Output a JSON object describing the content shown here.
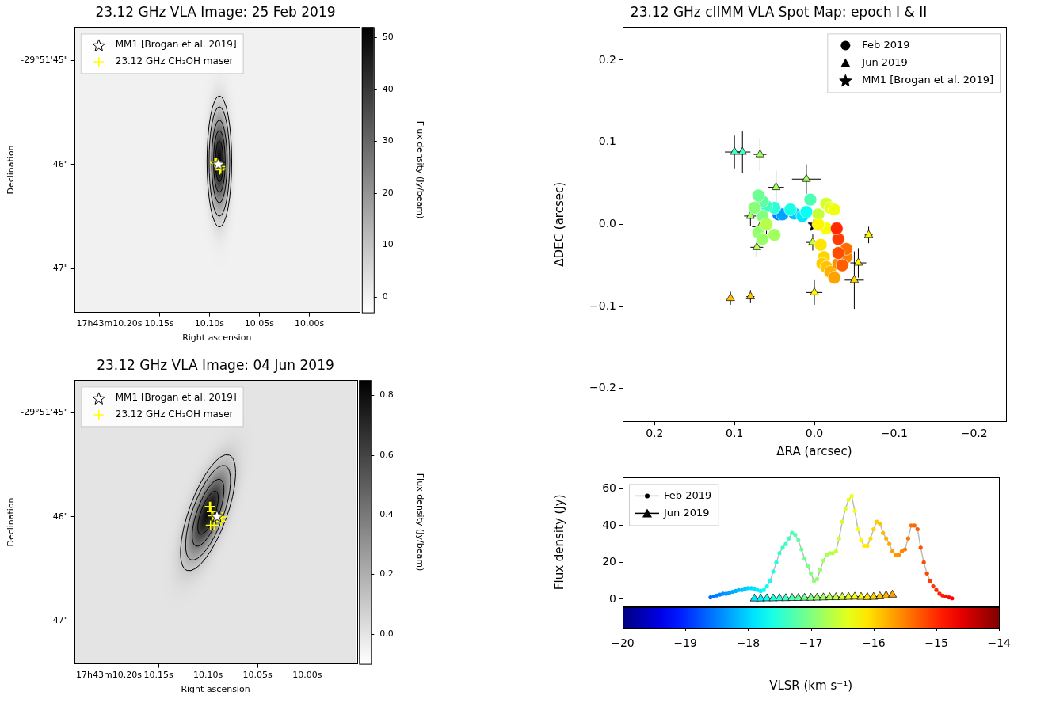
{
  "chart_data": [
    {
      "type": "image",
      "title": "23.12 GHz VLA Image: 25 Feb 2019",
      "x_label": "Right ascension",
      "y_label": "Declination",
      "xlim": [
        10.235,
        9.95
      ],
      "xticks": [
        {
          "value": 10.2,
          "label": "17h43m10.20s"
        },
        {
          "value": 10.15,
          "label": "10.15s"
        },
        {
          "value": 10.1,
          "label": "10.10s"
        },
        {
          "value": 10.05,
          "label": "10.05s"
        },
        {
          "value": 10.0,
          "label": "10.00s"
        }
      ],
      "ylim": [
        47.42,
        44.68
      ],
      "yticks": [
        {
          "value": 45,
          "label": "-29°51'45\""
        },
        {
          "value": 46,
          "label": "46\""
        },
        {
          "value": 47,
          "label": "47\""
        }
      ],
      "grid": false,
      "source": {
        "ra": 10.09,
        "dec": 45.97,
        "peak": 50,
        "fwhm_major": 0.69,
        "fwhm_minor": 0.13,
        "pa": 0
      },
      "contour_levels": [
        5,
        10,
        20,
        30,
        40
      ],
      "colorbar": {
        "range": [
          -3,
          52
        ],
        "ticks": [
          0,
          10,
          20,
          30,
          40,
          50
        ],
        "label": "Flux density (Jy/beam)"
      },
      "legend": "upper left",
      "series": [
        {
          "name": "MM1 [Brogan et al. 2019]",
          "marker": "star",
          "color": "#ffffff",
          "x": [
            10.091
          ],
          "values": [
            45.99
          ]
        },
        {
          "name": "23.12 GHz CH₃OH maser",
          "marker": "cross",
          "color": "#ffff00",
          "x": [
            10.0945,
            10.0935,
            10.0925,
            10.0905,
            10.089,
            10.0885,
            10.0895,
            10.0935
          ],
          "values": [
            45.98,
            45.985,
            45.98,
            45.99,
            46.02,
            46.04,
            46.05,
            45.99
          ]
        }
      ]
    },
    {
      "type": "image",
      "title": "23.12 GHz VLA Image: 04 Jun 2019",
      "x_label": "Right ascension",
      "y_label": "Declination",
      "xlim": [
        10.235,
        9.95
      ],
      "xticks": [
        {
          "value": 10.2,
          "label": "17h43m10.20s"
        },
        {
          "value": 10.15,
          "label": "10.15s"
        },
        {
          "value": 10.1,
          "label": "10.10s"
        },
        {
          "value": 10.05,
          "label": "10.05s"
        },
        {
          "value": 10.0,
          "label": "10.00s"
        }
      ],
      "ylim": [
        47.41,
        44.69
      ],
      "yticks": [
        {
          "value": 45,
          "label": "-29°51'45\""
        },
        {
          "value": 46,
          "label": "46\""
        },
        {
          "value": 47,
          "label": "47\""
        }
      ],
      "grid": false,
      "source": {
        "ra": 10.1,
        "dec": 45.96,
        "peak": 0.8,
        "fwhm_major": 0.68,
        "fwhm_minor": 0.21,
        "pa": -20
      },
      "contour_levels": [
        0.1,
        0.2,
        0.4,
        0.6
      ],
      "colorbar": {
        "range": [
          -0.1,
          0.85
        ],
        "ticks": [
          {
            "value": 0,
            "label": "0.0"
          },
          0.2,
          0.4,
          0.6,
          0.8
        ],
        "label": "Flux density (Jy/beam)"
      },
      "legend": "upper left",
      "series": [
        {
          "name": "MM1 [Brogan et al. 2019]",
          "marker": "star",
          "color": "#ffffff",
          "x": [
            10.091
          ],
          "values": [
            45.99
          ]
        },
        {
          "name": "23.12 GHz CH₃OH maser",
          "marker": "cross",
          "color": "#ffff00",
          "x": [
            10.0985,
            10.0975,
            10.0965,
            10.0975,
            10.094,
            10.091,
            10.087,
            10.086,
            10.095
          ],
          "values": [
            45.9,
            45.9,
            45.95,
            46.08,
            46.08,
            46.01,
            46.04,
            46.0,
            45.99
          ]
        }
      ]
    },
    {
      "type": "scatter",
      "title": "23.12 GHz cIIMM VLA Spot Map: epoch I & II",
      "x_label": "ΔRA (arcsec)",
      "y_label": "ΔDEC (arcsec)",
      "xlim": [
        0.24,
        -0.24
      ],
      "xticks": [
        0.2,
        0.1,
        {
          "value": 0,
          "label": "0.0"
        },
        {
          "value": -0.1,
          "label": "−0.1"
        },
        {
          "value": -0.2,
          "label": "−0.2"
        }
      ],
      "ylim": [
        -0.24,
        0.24
      ],
      "yticks": [
        {
          "value": -0.2,
          "label": "−0.2"
        },
        {
          "value": -0.1,
          "label": "−0.1"
        },
        {
          "value": 0,
          "label": "0.0"
        },
        0.1,
        0.2
      ],
      "grid": false,
      "legend": "upper right",
      "colorbar": {
        "range": [
          -20,
          -14
        ]
      },
      "series": [
        {
          "name": "Feb 2019",
          "marker": "circle",
          "x": [
            0.045,
            0.04,
            0.025,
            0.015,
            0.01,
            0.03,
            0.05,
            0.06,
            0.005,
            0.065,
            0.07,
            0.065,
            0.075,
            0.07,
            0.065,
            0.05,
            0.06,
            -0.005,
            -0.015,
            -0.02,
            -0.025,
            -0.015,
            -0.005,
            -0.008,
            -0.012,
            -0.01,
            -0.015,
            -0.02,
            -0.025,
            -0.03,
            -0.04,
            -0.04,
            -0.035,
            -0.03,
            -0.03,
            -0.028
          ],
          "values": [
            0.012,
            0.012,
            0.013,
            0.01,
            0.015,
            0.018,
            0.02,
            0.022,
            0.03,
            0.028,
            0.035,
            0.01,
            0.02,
            -0.01,
            -0.018,
            -0.013,
            0.0,
            0.012,
            0.025,
            0.02,
            0.018,
            -0.005,
            0.0,
            -0.025,
            -0.04,
            -0.048,
            -0.052,
            -0.058,
            -0.065,
            -0.048,
            -0.04,
            -0.03,
            -0.05,
            -0.035,
            -0.018,
            -0.005
          ],
          "v": [
            -18.5,
            -18.3,
            -18.1,
            -17.9,
            -17.7,
            -17.6,
            -17.5,
            -17.4,
            -17.3,
            -17.2,
            -17.1,
            -17.0,
            -16.95,
            -16.9,
            -16.85,
            -16.8,
            -16.7,
            -16.6,
            -16.5,
            -16.4,
            -16.35,
            -16.3,
            -16.2,
            -16.1,
            -16.0,
            -15.95,
            -15.9,
            -15.8,
            -15.7,
            -15.6,
            -15.5,
            -15.4,
            -15.3,
            -15.2,
            -15.1,
            -15.0
          ]
        },
        {
          "name": "Jun 2019",
          "marker": "triangle",
          "x": [
            0.1,
            0.09,
            0.068,
            0.048,
            0.08,
            0.068,
            0.072,
            0.06,
            0.01,
            0.002,
            0.0,
            0.105,
            0.08,
            -0.05,
            -0.055,
            -0.068
          ],
          "values": [
            0.088,
            0.088,
            0.085,
            0.045,
            0.01,
            -0.003,
            -0.028,
            -0.002,
            0.055,
            -0.022,
            -0.083,
            -0.09,
            -0.088,
            -0.068,
            -0.047,
            -0.013
          ],
          "v": [
            -17.4,
            -17.4,
            -16.8,
            -16.8,
            -16.8,
            -16.7,
            -16.7,
            -16.7,
            -16.8,
            -16.6,
            -16.2,
            -15.9,
            -15.9,
            -16.0,
            -16.2,
            -16.2
          ],
          "xerr": [
            0.012,
            0.01,
            0.008,
            0.01,
            0.008,
            0.01,
            0.008,
            0.008,
            0.018,
            0.008,
            0.01,
            0.005,
            0.005,
            0.012,
            0.01,
            0.005
          ],
          "yerr": [
            0.02,
            0.025,
            0.02,
            0.02,
            0.012,
            0.015,
            0.012,
            0.01,
            0.018,
            0.01,
            0.015,
            0.008,
            0.008,
            0.035,
            0.018,
            0.01
          ]
        },
        {
          "name": "MM1 [Brogan et al. 2019]",
          "marker": "star",
          "color": "#000000",
          "x": [
            0
          ],
          "values": [
            0
          ]
        }
      ]
    },
    {
      "type": "line",
      "y_label": "Flux density (Jy)",
      "xlim": [
        -20,
        -14
      ],
      "ylim": [
        -4,
        66
      ],
      "yticks": [
        0,
        20,
        40,
        60
      ],
      "grid": false,
      "legend": "upper left",
      "colorbar": {
        "range": [
          -20,
          -14
        ],
        "ticks": [
          {
            "value": -20,
            "label": "−20"
          },
          {
            "value": -19,
            "label": "−19"
          },
          {
            "value": -18,
            "label": "−18"
          },
          {
            "value": -17,
            "label": "−17"
          },
          {
            "value": -16,
            "label": "−16"
          },
          {
            "value": -15,
            "label": "−15"
          },
          {
            "value": -14,
            "label": "−14"
          }
        ],
        "label": "VLSR (km s⁻¹)"
      },
      "series": [
        {
          "name": "Feb 2019",
          "color": "#bbbbbb",
          "marker": "dot",
          "line_style": "solid",
          "x": [
            -18.6,
            -18.55,
            -18.5,
            -18.45,
            -18.4,
            -18.35,
            -18.3,
            -18.25,
            -18.2,
            -18.15,
            -18.1,
            -18.05,
            -18.0,
            -17.95,
            -17.9,
            -17.85,
            -17.8,
            -17.75,
            -17.7,
            -17.65,
            -17.6,
            -17.55,
            -17.5,
            -17.45,
            -17.4,
            -17.35,
            -17.3,
            -17.25,
            -17.2,
            -17.15,
            -17.1,
            -17.05,
            -17.0,
            -16.95,
            -16.9,
            -16.85,
            -16.8,
            -16.75,
            -16.7,
            -16.65,
            -16.6,
            -16.55,
            -16.5,
            -16.45,
            -16.4,
            -16.35,
            -16.3,
            -16.25,
            -16.2,
            -16.15,
            -16.1,
            -16.05,
            -16.0,
            -15.95,
            -15.9,
            -15.85,
            -15.8,
            -15.75,
            -15.7,
            -15.65,
            -15.6,
            -15.55,
            -15.5,
            -15.45,
            -15.4,
            -15.35,
            -15.3,
            -15.25,
            -15.2,
            -15.15,
            -15.1,
            -15.05,
            -15.0,
            -14.95,
            -14.9,
            -14.85,
            -14.8,
            -14.75
          ],
          "values": [
            1,
            1.5,
            2,
            2.5,
            3,
            3,
            3.5,
            4,
            4.5,
            5,
            5,
            5.5,
            6,
            6,
            5.5,
            5,
            4.5,
            5,
            7,
            10,
            15,
            20,
            25,
            28,
            30,
            33,
            36,
            35,
            32,
            27,
            22,
            18,
            14,
            10,
            11,
            16,
            21,
            24,
            25,
            25,
            26,
            33,
            42,
            49,
            54,
            56,
            48,
            38,
            32,
            29,
            29,
            33,
            38,
            42,
            41,
            36,
            33,
            30,
            26,
            24,
            24,
            26,
            27,
            33,
            40,
            40,
            38,
            28,
            20,
            14,
            10,
            7,
            5,
            3,
            2,
            1.5,
            1,
            0.5
          ]
        },
        {
          "name": "Jun 2019",
          "color": "#000000",
          "marker": "triangle",
          "line_style": "solid",
          "x": [
            -17.9,
            -17.8,
            -17.7,
            -17.6,
            -17.5,
            -17.4,
            -17.3,
            -17.2,
            -17.1,
            -17.0,
            -16.9,
            -16.8,
            -16.7,
            -16.6,
            -16.5,
            -16.4,
            -16.3,
            -16.2,
            -16.1,
            -16.0,
            -15.9,
            -15.8,
            -15.7
          ],
          "values": [
            0.3,
            0.3,
            0.4,
            0.4,
            0.5,
            0.5,
            0.6,
            0.6,
            0.7,
            0.7,
            0.8,
            0.9,
            1.0,
            1.0,
            1.1,
            1.2,
            1.3,
            1.2,
            1.1,
            1.2,
            1.5,
            2.0,
            2.4
          ]
        }
      ]
    }
  ]
}
